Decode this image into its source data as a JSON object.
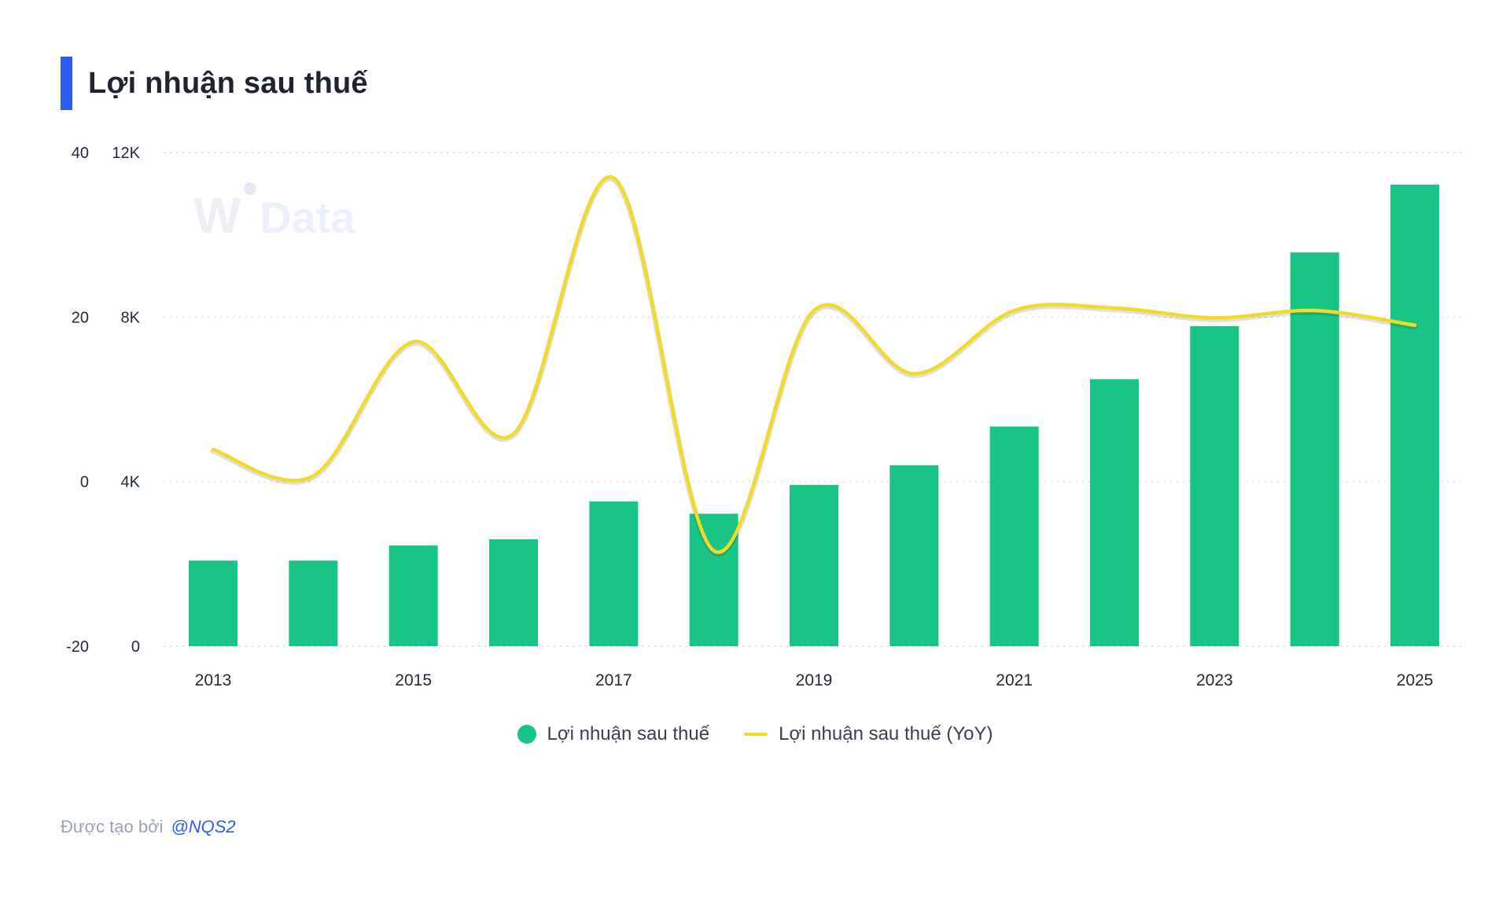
{
  "title": "Lợi nhuận sau thuế",
  "watermark": "WiData",
  "footer": {
    "label": "Được tạo bởi",
    "author": "@NQS2"
  },
  "colors": {
    "accent": "#2f5bf5",
    "bar": "#19c585",
    "line": "#f2da28",
    "grid": "#d8dbe2"
  },
  "chart_data": {
    "type": "bar",
    "x": [
      2013,
      2014,
      2015,
      2016,
      2017,
      2018,
      2019,
      2020,
      2021,
      2022,
      2023,
      2024,
      2025
    ],
    "xtick_labels": [
      "2013",
      "2015",
      "2017",
      "2019",
      "2021",
      "2023",
      "2025"
    ],
    "series": [
      {
        "name": "Lợi nhuận sau thuế",
        "type": "bar",
        "axis": "right",
        "values": [
          2080,
          2080,
          2450,
          2600,
          3520,
          3220,
          3920,
          4400,
          5340,
          6490,
          7780,
          9570,
          11220
        ]
      },
      {
        "name": "Lợi nhuận sau thuế (YoY)",
        "type": "line",
        "axis": "left",
        "values": [
          3.9,
          0.7,
          17.0,
          5.8,
          36.9,
          -8.4,
          20.8,
          13.1,
          20.8,
          21.1,
          19.9,
          20.8,
          19.0
        ]
      }
    ],
    "y_left": {
      "ticks": [
        "40",
        "20",
        "0",
        "-20"
      ],
      "lim": [
        -20,
        40
      ]
    },
    "y_right": {
      "ticks": [
        "12K",
        "8K",
        "4K",
        "0"
      ],
      "lim": [
        0,
        12000
      ]
    },
    "grid": true,
    "legend_position": "bottom-center"
  }
}
